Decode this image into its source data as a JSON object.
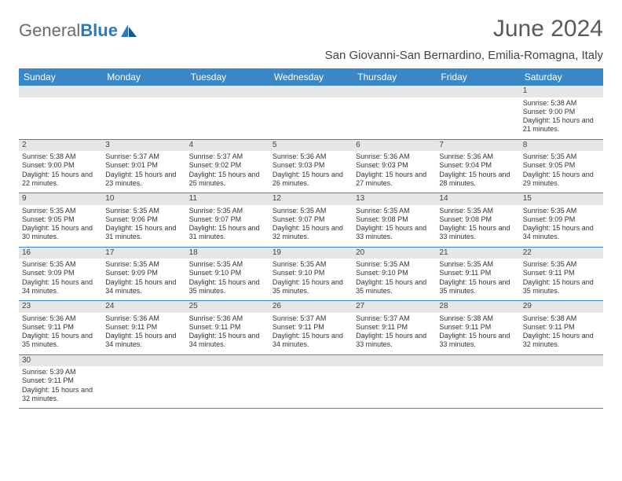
{
  "logo": {
    "part1": "General",
    "part2": "Blue"
  },
  "title": "June 2024",
  "location": "San Giovanni-San Bernardino, Emilia-Romagna, Italy",
  "weekdays": [
    "Sunday",
    "Monday",
    "Tuesday",
    "Wednesday",
    "Thursday",
    "Friday",
    "Saturday"
  ],
  "colors": {
    "header_bg": "#3a87c7",
    "header_text": "#ffffff",
    "daynum_bg": "#e6e6e6",
    "cell_border": "#3a87c7",
    "body_text": "#333333",
    "title_text": "#5a5a5a"
  },
  "typography": {
    "title_fontsize": 30,
    "location_fontsize": 15,
    "weekday_fontsize": 12,
    "daynum_fontsize": 10,
    "cell_fontsize": 9
  },
  "layout": {
    "first_weekday_index": 6,
    "columns": 7
  },
  "days": [
    {
      "n": 1,
      "sunrise": "5:38 AM",
      "sunset": "9:00 PM",
      "daylight": "15 hours and 21 minutes."
    },
    {
      "n": 2,
      "sunrise": "5:38 AM",
      "sunset": "9:00 PM",
      "daylight": "15 hours and 22 minutes."
    },
    {
      "n": 3,
      "sunrise": "5:37 AM",
      "sunset": "9:01 PM",
      "daylight": "15 hours and 23 minutes."
    },
    {
      "n": 4,
      "sunrise": "5:37 AM",
      "sunset": "9:02 PM",
      "daylight": "15 hours and 25 minutes."
    },
    {
      "n": 5,
      "sunrise": "5:36 AM",
      "sunset": "9:03 PM",
      "daylight": "15 hours and 26 minutes."
    },
    {
      "n": 6,
      "sunrise": "5:36 AM",
      "sunset": "9:03 PM",
      "daylight": "15 hours and 27 minutes."
    },
    {
      "n": 7,
      "sunrise": "5:36 AM",
      "sunset": "9:04 PM",
      "daylight": "15 hours and 28 minutes."
    },
    {
      "n": 8,
      "sunrise": "5:35 AM",
      "sunset": "9:05 PM",
      "daylight": "15 hours and 29 minutes."
    },
    {
      "n": 9,
      "sunrise": "5:35 AM",
      "sunset": "9:05 PM",
      "daylight": "15 hours and 30 minutes."
    },
    {
      "n": 10,
      "sunrise": "5:35 AM",
      "sunset": "9:06 PM",
      "daylight": "15 hours and 31 minutes."
    },
    {
      "n": 11,
      "sunrise": "5:35 AM",
      "sunset": "9:07 PM",
      "daylight": "15 hours and 31 minutes."
    },
    {
      "n": 12,
      "sunrise": "5:35 AM",
      "sunset": "9:07 PM",
      "daylight": "15 hours and 32 minutes."
    },
    {
      "n": 13,
      "sunrise": "5:35 AM",
      "sunset": "9:08 PM",
      "daylight": "15 hours and 33 minutes."
    },
    {
      "n": 14,
      "sunrise": "5:35 AM",
      "sunset": "9:08 PM",
      "daylight": "15 hours and 33 minutes."
    },
    {
      "n": 15,
      "sunrise": "5:35 AM",
      "sunset": "9:09 PM",
      "daylight": "15 hours and 34 minutes."
    },
    {
      "n": 16,
      "sunrise": "5:35 AM",
      "sunset": "9:09 PM",
      "daylight": "15 hours and 34 minutes."
    },
    {
      "n": 17,
      "sunrise": "5:35 AM",
      "sunset": "9:09 PM",
      "daylight": "15 hours and 34 minutes."
    },
    {
      "n": 18,
      "sunrise": "5:35 AM",
      "sunset": "9:10 PM",
      "daylight": "15 hours and 35 minutes."
    },
    {
      "n": 19,
      "sunrise": "5:35 AM",
      "sunset": "9:10 PM",
      "daylight": "15 hours and 35 minutes."
    },
    {
      "n": 20,
      "sunrise": "5:35 AM",
      "sunset": "9:10 PM",
      "daylight": "15 hours and 35 minutes."
    },
    {
      "n": 21,
      "sunrise": "5:35 AM",
      "sunset": "9:11 PM",
      "daylight": "15 hours and 35 minutes."
    },
    {
      "n": 22,
      "sunrise": "5:35 AM",
      "sunset": "9:11 PM",
      "daylight": "15 hours and 35 minutes."
    },
    {
      "n": 23,
      "sunrise": "5:36 AM",
      "sunset": "9:11 PM",
      "daylight": "15 hours and 35 minutes."
    },
    {
      "n": 24,
      "sunrise": "5:36 AM",
      "sunset": "9:11 PM",
      "daylight": "15 hours and 34 minutes."
    },
    {
      "n": 25,
      "sunrise": "5:36 AM",
      "sunset": "9:11 PM",
      "daylight": "15 hours and 34 minutes."
    },
    {
      "n": 26,
      "sunrise": "5:37 AM",
      "sunset": "9:11 PM",
      "daylight": "15 hours and 34 minutes."
    },
    {
      "n": 27,
      "sunrise": "5:37 AM",
      "sunset": "9:11 PM",
      "daylight": "15 hours and 33 minutes."
    },
    {
      "n": 28,
      "sunrise": "5:38 AM",
      "sunset": "9:11 PM",
      "daylight": "15 hours and 33 minutes."
    },
    {
      "n": 29,
      "sunrise": "5:38 AM",
      "sunset": "9:11 PM",
      "daylight": "15 hours and 32 minutes."
    },
    {
      "n": 30,
      "sunrise": "5:39 AM",
      "sunset": "9:11 PM",
      "daylight": "15 hours and 32 minutes."
    }
  ],
  "labels": {
    "sunrise": "Sunrise:",
    "sunset": "Sunset:",
    "daylight": "Daylight:"
  }
}
